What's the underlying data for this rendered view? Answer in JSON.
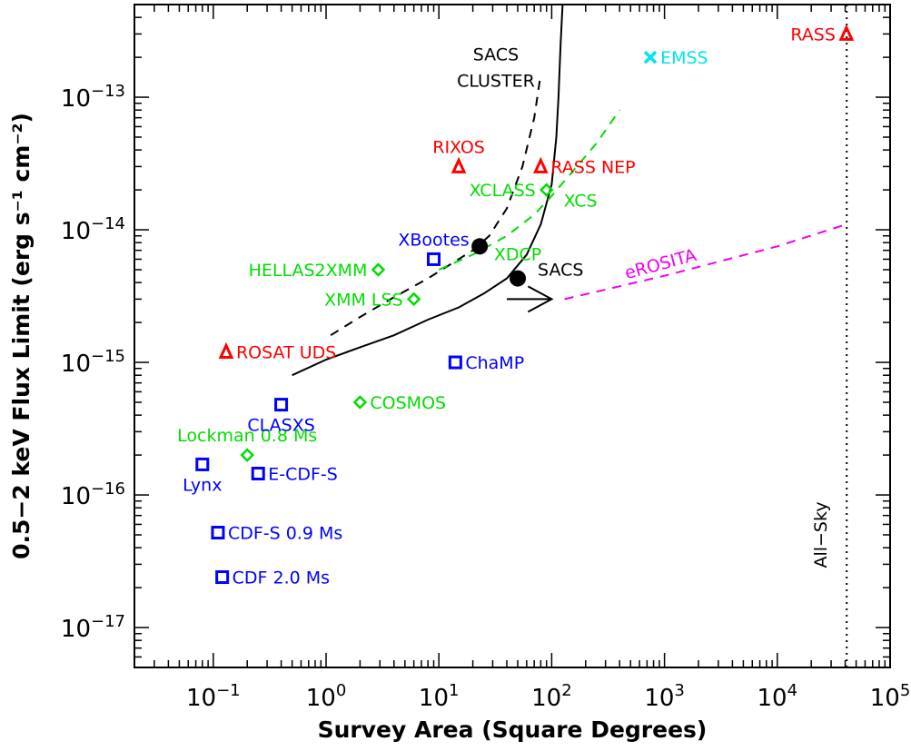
{
  "chart_data": {
    "type": "scatter",
    "xlabel": "Survey Area (Square Degrees)",
    "ylabel": "0.5−2 keV Flux Limit (erg s⁻¹ cm⁻²)",
    "x_scale": "log",
    "y_scale": "log",
    "xlim": [
      0.02,
      100000
    ],
    "ylim": [
      5e-18,
      5e-13
    ],
    "x_ticks": [
      {
        "value": 0.1,
        "base": "10",
        "exp": "−1"
      },
      {
        "value": 1,
        "base": "10",
        "exp": "0"
      },
      {
        "value": 10,
        "base": "10",
        "exp": "1"
      },
      {
        "value": 100,
        "base": "10",
        "exp": "2"
      },
      {
        "value": 1000,
        "base": "10",
        "exp": "3"
      },
      {
        "value": 10000,
        "base": "10",
        "exp": "4"
      },
      {
        "value": 100000,
        "base": "10",
        "exp": "5"
      }
    ],
    "y_ticks": [
      {
        "value": 1e-17,
        "base": "10",
        "exp": "−17"
      },
      {
        "value": 1e-16,
        "base": "10",
        "exp": "−16"
      },
      {
        "value": 1e-15,
        "base": "10",
        "exp": "−15"
      },
      {
        "value": 1e-14,
        "base": "10",
        "exp": "−14"
      },
      {
        "value": 1e-13,
        "base": "10",
        "exp": "−13"
      }
    ],
    "colors": {
      "rosat": "#ff0000",
      "chandra": "#0000ff",
      "xmm": "#00dd00",
      "einstein": "#00e5ee",
      "erosita": "#ee00ee",
      "sacs": "#000000"
    },
    "points": [
      {
        "label": "RASS",
        "x": 41000,
        "y": 3e-13,
        "marker": "triangle",
        "color": "#ff0000",
        "label_pos": "left"
      },
      {
        "label": "EMSS",
        "x": 750,
        "y": 2e-13,
        "marker": "x",
        "color": "#00e5ee",
        "label_pos": "right"
      },
      {
        "label": "RIXOS",
        "x": 15,
        "y": 3e-14,
        "marker": "triangle",
        "color": "#ff0000",
        "label_pos": "above"
      },
      {
        "label": "RASS NEP",
        "x": 80,
        "y": 3e-14,
        "marker": "triangle",
        "color": "#ff0000",
        "label_pos": "right"
      },
      {
        "label": "ROSAT UDS",
        "x": 0.13,
        "y": 1.2e-15,
        "marker": "triangle",
        "color": "#ff0000",
        "label_pos": "right"
      },
      {
        "label": "XCLASS",
        "x": 90,
        "y": 2e-14,
        "marker": "diamond",
        "color": "#00dd00",
        "label_pos": "left"
      },
      {
        "label": "HELLAS2XMM",
        "x": 2.9,
        "y": 5e-15,
        "marker": "diamond",
        "color": "#00dd00",
        "label_pos": "left"
      },
      {
        "label": "XMM LSS",
        "x": 6,
        "y": 3e-15,
        "marker": "diamond",
        "color": "#00dd00",
        "label_pos": "left"
      },
      {
        "label": "COSMOS",
        "x": 2,
        "y": 5e-16,
        "marker": "diamond",
        "color": "#00dd00",
        "label_pos": "right"
      },
      {
        "label": "Lockman 0.8 Ms",
        "x": 0.2,
        "y": 2e-16,
        "marker": "diamond",
        "color": "#00dd00",
        "label_pos": "above"
      },
      {
        "label": "XBootes",
        "x": 9,
        "y": 6e-15,
        "marker": "square",
        "color": "#0000ff",
        "label_pos": "above"
      },
      {
        "label": "ChaMP",
        "x": 14,
        "y": 1e-15,
        "marker": "square",
        "color": "#0000ff",
        "label_pos": "right"
      },
      {
        "label": "CLASXS",
        "x": 0.4,
        "y": 4.8e-16,
        "marker": "square",
        "color": "#0000ff",
        "label_pos": "below"
      },
      {
        "label": "Lynx",
        "x": 0.08,
        "y": 1.7e-16,
        "marker": "square",
        "color": "#0000ff",
        "label_pos": "below"
      },
      {
        "label": "E-CDF-S",
        "x": 0.25,
        "y": 1.45e-16,
        "marker": "square",
        "color": "#0000ff",
        "label_pos": "right"
      },
      {
        "label": "CDF-S 0.9 Ms",
        "x": 0.11,
        "y": 5.2e-17,
        "marker": "square",
        "color": "#0000ff",
        "label_pos": "right"
      },
      {
        "label": "CDF 2.0 Ms",
        "x": 0.12,
        "y": 2.4e-17,
        "marker": "square",
        "color": "#0000ff",
        "label_pos": "right"
      }
    ],
    "curves": [
      {
        "name": "SACS",
        "style": "solid",
        "color": "#000000",
        "x": [
          0.5,
          1,
          2,
          4,
          8,
          15,
          25,
          40,
          60,
          80,
          100,
          110,
          115,
          120,
          125
        ],
        "y": [
          8e-16,
          1.05e-15,
          1.3e-15,
          1.6e-15,
          2.1e-15,
          2.6e-15,
          3.3e-15,
          4.3e-15,
          6.5e-15,
          1.1e-14,
          2.2e-14,
          5e-14,
          1e-13,
          2.5e-13,
          5e-13
        ]
      },
      {
        "name": "SACS CLUSTER",
        "style": "dashed",
        "color": "#000000",
        "x": [
          1.1,
          2,
          4,
          8,
          14,
          20,
          28,
          40,
          55,
          70,
          80
        ],
        "y": [
          1.6e-15,
          2.2e-15,
          3.1e-15,
          4.3e-15,
          5.8e-15,
          7e-15,
          9e-15,
          1.45e-14,
          3e-14,
          7e-14,
          1.5e-13
        ]
      },
      {
        "name": "XCS",
        "style": "dashed",
        "color": "#00dd00",
        "x": [
          10,
          20,
          40,
          70,
          100,
          150,
          250,
          400
        ],
        "y": [
          5e-15,
          6.5e-15,
          9e-15,
          1.3e-14,
          1.8e-14,
          2.7e-14,
          4.5e-14,
          8e-14
        ]
      },
      {
        "name": "eROSITA",
        "style": "dashed",
        "color": "#ee00ee",
        "x": [
          130,
          1000,
          10000,
          41000
        ],
        "y": [
          3e-15,
          4.5e-15,
          7.5e-15,
          1.1e-14
        ]
      }
    ],
    "big_points": [
      {
        "x": 23,
        "y": 7.5e-15
      },
      {
        "x": 50,
        "y": 4.3e-15
      }
    ],
    "arrow": {
      "x_from": 40,
      "x_to": 100,
      "y": 3e-15,
      "color": "#000000"
    },
    "all_sky_line": {
      "x": 41253,
      "label": "All−Sky"
    },
    "curve_labels": [
      {
        "text": "SACS",
        "x": 120,
        "y": 4.5e-15,
        "color": "#000000"
      },
      {
        "text": "SACS",
        "x": 32,
        "y": 1.9e-13,
        "color": "#000000"
      },
      {
        "text": "CLUSTER",
        "x": 32,
        "y": 1.2e-13,
        "color": "#000000"
      },
      {
        "text": "XCS",
        "x": 180,
        "y": 1.5e-14,
        "color": "#00dd00"
      },
      {
        "text": "XDCP",
        "x": 50,
        "y": 5.9e-15,
        "color": "#00dd00"
      },
      {
        "text": "eROSITA",
        "x": 950,
        "y": 5e-15,
        "color": "#ee00ee",
        "rotate": -15
      }
    ]
  }
}
